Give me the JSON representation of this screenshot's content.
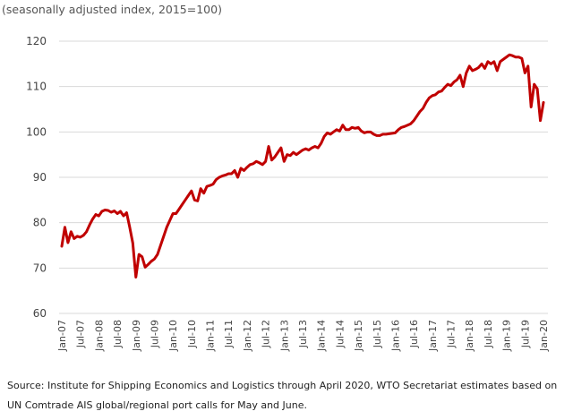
{
  "chart_data": {
    "type": "line",
    "subtitle": "(seasonally adjusted index, 2015=100)",
    "y_ticks": [
      "60",
      "70",
      "80",
      "90",
      "100",
      "110",
      "120"
    ],
    "ylim": [
      60,
      120
    ],
    "grid": true,
    "x_tick_labels": [
      "Jan-07",
      "Jul-07",
      "Jan-08",
      "Jul-08",
      "Jan-09",
      "Jul-09",
      "Jan-10",
      "Jul-10",
      "Jan-11",
      "Jul-11",
      "Jan-12",
      "Jul-12",
      "Jan-13",
      "Jul-13",
      "Jan-14",
      "Jul-14",
      "Jan-15",
      "Jul-15",
      "Jan-16",
      "Jul-16",
      "Jan-17",
      "Jul-17",
      "Jan-18",
      "Jul-18",
      "Jan-19",
      "Jul-19",
      "Jan-20"
    ],
    "x_start": "Jan-07",
    "color": "#c00000",
    "series": [
      {
        "values": [
          74.8,
          79.0,
          75.6,
          78.0,
          76.5,
          77.0,
          76.8,
          77.2,
          78.0,
          79.5,
          80.8,
          81.8,
          81.5,
          82.5,
          82.8,
          82.7,
          82.3,
          82.6,
          82.0,
          82.5,
          81.5,
          82.2,
          79.0,
          75.5,
          68.0,
          73.0,
          72.5,
          70.2,
          70.8,
          71.5,
          72.0,
          73.0,
          75.0,
          77.0,
          79.0,
          80.5,
          82.0,
          82.0,
          83.0,
          84.0,
          85.0,
          86.0,
          87.0,
          85.0,
          84.8,
          87.5,
          86.5,
          88.0,
          88.2,
          88.5,
          89.5,
          90.0,
          90.3,
          90.5,
          90.8,
          90.8,
          91.5,
          90.0,
          92.0,
          91.5,
          92.2,
          92.8,
          93.0,
          93.5,
          93.2,
          92.8,
          93.5,
          96.8,
          93.8,
          94.5,
          95.5,
          96.5,
          93.5,
          95.0,
          94.8,
          95.5,
          95.0,
          95.5,
          96.0,
          96.3,
          96.0,
          96.5,
          96.8,
          96.5,
          97.5,
          99.0,
          99.8,
          99.5,
          100.0,
          100.5,
          100.2,
          101.5,
          100.5,
          100.5,
          101.0,
          100.8,
          101.0,
          100.2,
          99.8,
          100.0,
          100.0,
          99.5,
          99.2,
          99.2,
          99.5,
          99.5,
          99.6,
          99.7,
          99.8,
          100.5,
          101.0,
          101.2,
          101.5,
          101.8,
          102.5,
          103.5,
          104.5,
          105.2,
          106.5,
          107.5,
          108.0,
          108.2,
          108.8,
          109.0,
          109.8,
          110.5,
          110.2,
          111.0,
          111.5,
          112.5,
          110.0,
          113.0,
          114.5,
          113.5,
          113.8,
          114.2,
          115.0,
          114.0,
          115.5,
          115.0,
          115.5,
          113.5,
          115.5,
          116.0,
          116.5,
          117.0,
          116.8,
          116.5,
          116.5,
          116.2,
          113.0,
          114.5,
          105.5,
          110.5,
          109.5,
          102.5,
          106.5
        ]
      }
    ]
  },
  "source_note": "Source: Institute for Shipping Economics and Logistics through April 2020, WTO Secretariat estimates based on UN Comtrade AIS global/regional port calls for May and June."
}
